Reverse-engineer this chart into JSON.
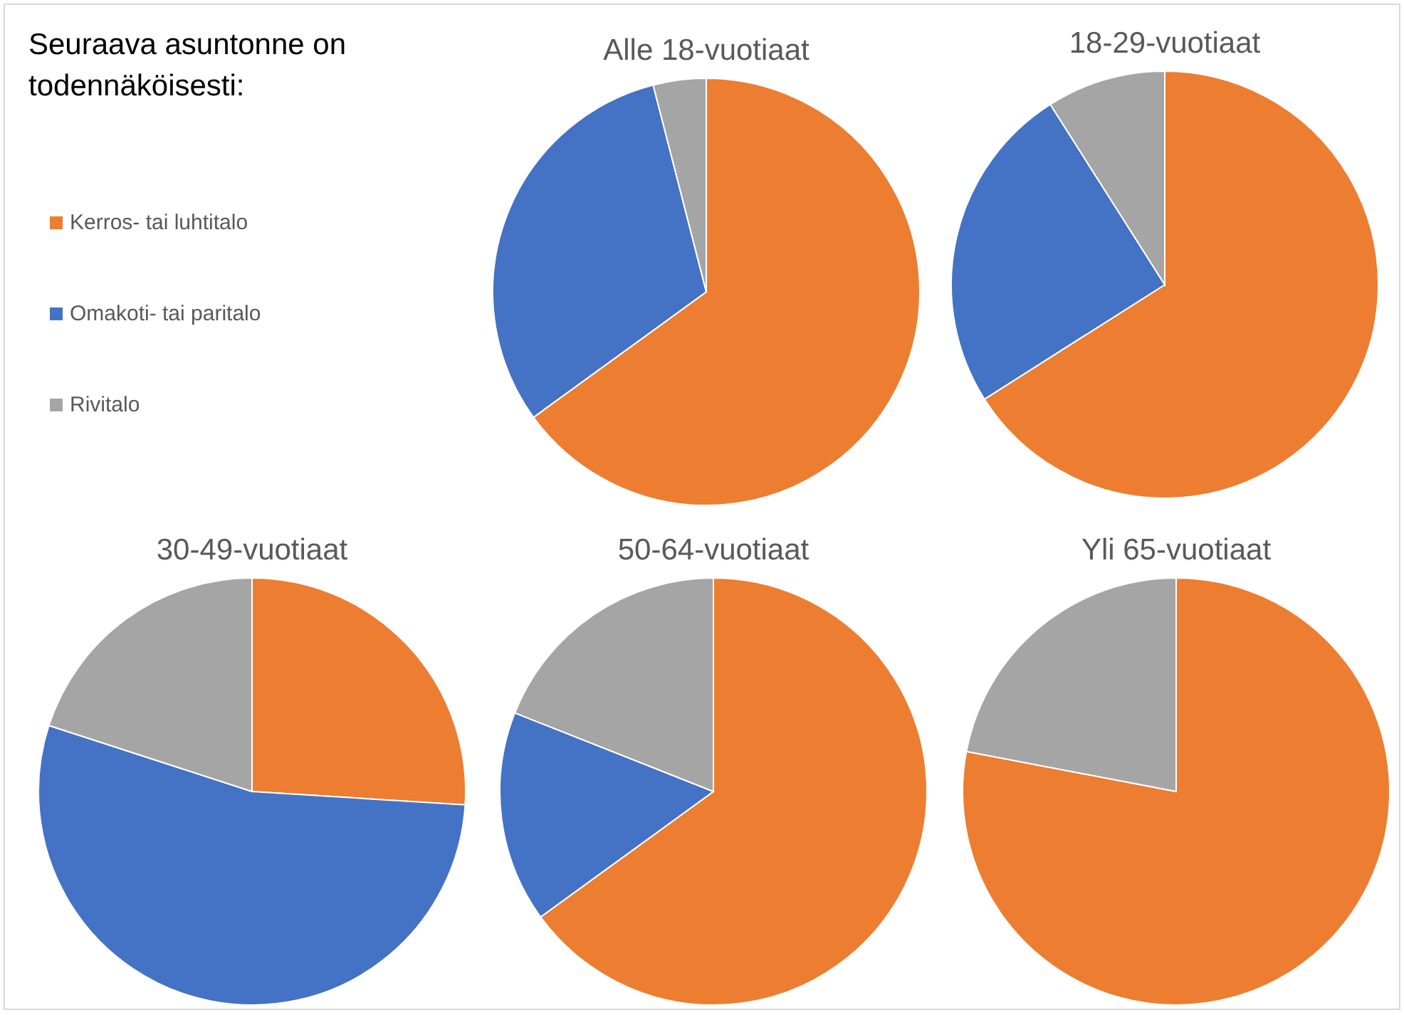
{
  "chart_data": [
    {
      "type": "other",
      "title": "Seuraava asuntonne on todennäköisesti:"
    },
    {
      "type": "pie",
      "title": "Alle 18-vuotiaat",
      "categories": [
        "Kerros- tai luhtitalo",
        "Omakoti- tai paritalo",
        "Rivitalo"
      ],
      "values": [
        65,
        31,
        4
      ],
      "colors": [
        "#ed7d31",
        "#4472c4",
        "#a5a5a5"
      ],
      "legend": "left"
    },
    {
      "type": "pie",
      "title": "18-29-vuotiaat",
      "categories": [
        null,
        null,
        null
      ],
      "values": [
        66,
        25,
        9
      ],
      "colors": [
        "#ed7d31",
        "#4472c4",
        "#a5a5a5"
      ]
    },
    {
      "type": "pie",
      "title": "30-49-vuotiaat",
      "categories": [
        null,
        null,
        null
      ],
      "values": [
        26,
        54,
        20
      ],
      "colors": [
        "#ed7d31",
        "#4472c4",
        "#a5a5a5"
      ]
    },
    {
      "type": "pie",
      "title": "50-64-vuotiaat",
      "categories": [
        null,
        null,
        null
      ],
      "values": [
        65,
        16,
        19
      ],
      "colors": [
        "#ed7d31",
        "#4472c4",
        "#a5a5a5"
      ]
    },
    {
      "type": "pie",
      "title": "Yli 65-vuotiaat",
      "categories": [
        null,
        null,
        null
      ],
      "values": [
        78,
        0,
        22
      ],
      "colors": [
        "#ed7d31",
        "#4472c4",
        "#a5a5a5"
      ]
    }
  ]
}
